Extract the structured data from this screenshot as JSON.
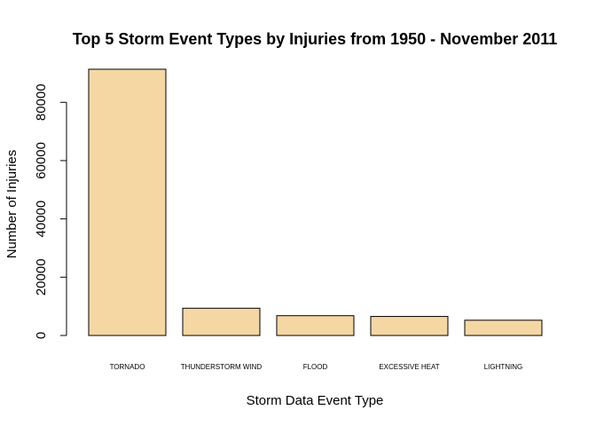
{
  "chart_data": {
    "type": "bar",
    "title": "Top 5 Storm Event Types by Injuries from 1950 - November 2011",
    "xlabel": "Storm Data Event Type",
    "ylabel": "Number of Injuries",
    "categories": [
      "TORNADO",
      "THUNDERSTORM WIND",
      "FLOOD",
      "EXCESSIVE HEAT",
      "LIGHTNING"
    ],
    "values": [
      91346,
      9353,
      6789,
      6525,
      5230
    ],
    "ylim": [
      0,
      91346
    ],
    "yticks": [
      0,
      20000,
      40000,
      60000,
      80000
    ],
    "ytick_labels": [
      "0",
      "20000",
      "40000",
      "60000",
      "80000"
    ],
    "bar_color": "#f5d7a4",
    "bar_edge_color": "#000000",
    "grid": false,
    "legend": "none"
  }
}
